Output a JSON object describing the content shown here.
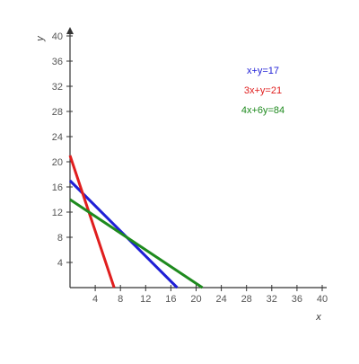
{
  "chart_data": {
    "type": "line",
    "xlabel": "x",
    "ylabel": "y",
    "xlim": [
      0,
      40
    ],
    "ylim": [
      0,
      40
    ],
    "xticks": [
      4,
      8,
      12,
      16,
      20,
      24,
      28,
      32,
      36,
      40
    ],
    "yticks": [
      4,
      8,
      12,
      16,
      20,
      24,
      28,
      32,
      36,
      40
    ],
    "x_tick_labels": [
      "4",
      "8",
      "12",
      "16",
      "20",
      "24",
      "28",
      "32",
      "36",
      "40"
    ],
    "y_tick_labels": [
      "4",
      "8",
      "12",
      "16",
      "20",
      "24",
      "28",
      "32",
      "36",
      "40"
    ],
    "grid": false,
    "legend_position": "top-right",
    "series": [
      {
        "name": "x+y=17",
        "color": "#1f1fd6",
        "x": [
          0,
          17
        ],
        "y": [
          17,
          0
        ]
      },
      {
        "name": "3x+y=21",
        "color": "#e01e1e",
        "x": [
          0,
          7
        ],
        "y": [
          21,
          0
        ]
      },
      {
        "name": "4x+6y=84",
        "color": "#1e8a1e",
        "x": [
          0,
          21
        ],
        "y": [
          14,
          0
        ]
      }
    ]
  }
}
